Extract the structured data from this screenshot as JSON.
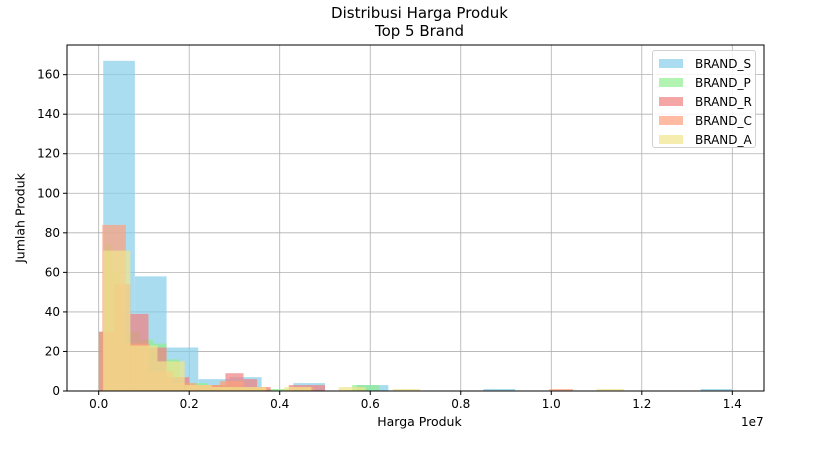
{
  "chart_data": {
    "type": "bar",
    "title": "Distribusi Harga Produk",
    "subtitle": "Top 5 Brand",
    "xlabel": "Harga Produk",
    "ylabel": "Jumlah Produk",
    "x_offset_label": "1e7",
    "xlim": [
      -0.07,
      1.47
    ],
    "ylim": [
      0,
      175
    ],
    "xticks": [
      0.0,
      0.2,
      0.4,
      0.6,
      0.8,
      1.0,
      1.2,
      1.4
    ],
    "xtick_labels": [
      "0.0",
      "0.2",
      "0.4",
      "0.6",
      "0.8",
      "1.0",
      "1.2",
      "1.4"
    ],
    "yticks": [
      0,
      20,
      40,
      60,
      80,
      100,
      120,
      140,
      160
    ],
    "ytick_labels": [
      "0",
      "20",
      "40",
      "60",
      "80",
      "100",
      "120",
      "140",
      "160"
    ],
    "grid": true,
    "legend_position": "top-right",
    "series": [
      {
        "name": "BRAND_S",
        "color": "#87ceeb",
        "bins": [
          [
            0.01,
            0.08,
            167
          ],
          [
            0.08,
            0.15,
            58
          ],
          [
            0.15,
            0.22,
            22
          ],
          [
            0.22,
            0.29,
            6
          ],
          [
            0.29,
            0.36,
            7
          ],
          [
            0.43,
            0.5,
            4
          ],
          [
            0.57,
            0.64,
            3
          ],
          [
            0.85,
            0.92,
            1
          ],
          [
            1.33,
            1.4,
            1
          ]
        ]
      },
      {
        "name": "BRAND_P",
        "color": "#90ee90",
        "bins": [
          [
            0.0,
            0.015,
            30
          ],
          [
            0.015,
            0.03,
            74
          ],
          [
            0.03,
            0.045,
            60
          ],
          [
            0.045,
            0.06,
            40
          ],
          [
            0.06,
            0.09,
            30
          ],
          [
            0.09,
            0.12,
            26
          ],
          [
            0.12,
            0.15,
            24
          ],
          [
            0.15,
            0.18,
            16
          ],
          [
            0.18,
            0.24,
            4
          ],
          [
            0.24,
            0.3,
            3
          ],
          [
            0.3,
            0.36,
            2
          ],
          [
            0.36,
            0.42,
            1
          ],
          [
            0.56,
            0.62,
            3
          ]
        ]
      },
      {
        "name": "BRAND_R",
        "color": "#f08080",
        "bins": [
          [
            0.0,
            0.035,
            30
          ],
          [
            0.035,
            0.07,
            54
          ],
          [
            0.07,
            0.11,
            39
          ],
          [
            0.11,
            0.15,
            22
          ],
          [
            0.15,
            0.2,
            7
          ],
          [
            0.2,
            0.28,
            3
          ],
          [
            0.28,
            0.32,
            9
          ],
          [
            0.32,
            0.35,
            6
          ],
          [
            0.35,
            0.38,
            2
          ],
          [
            0.42,
            0.5,
            3
          ]
        ]
      },
      {
        "name": "BRAND_C",
        "color": "#ffa07a",
        "bins": [
          [
            0.008,
            0.06,
            84
          ],
          [
            0.06,
            0.112,
            24
          ],
          [
            0.112,
            0.164,
            10
          ],
          [
            0.164,
            0.216,
            4
          ],
          [
            0.216,
            0.268,
            3
          ],
          [
            0.268,
            0.32,
            5
          ],
          [
            0.32,
            0.372,
            2
          ],
          [
            0.424,
            0.476,
            2
          ],
          [
            0.996,
            1.048,
            1
          ]
        ]
      },
      {
        "name": "BRAND_A",
        "color": "#f0e68c",
        "bins": [
          [
            0.01,
            0.07,
            71
          ],
          [
            0.07,
            0.13,
            23
          ],
          [
            0.13,
            0.19,
            15
          ],
          [
            0.19,
            0.25,
            3
          ],
          [
            0.25,
            0.31,
            2
          ],
          [
            0.31,
            0.37,
            2
          ],
          [
            0.41,
            0.47,
            2
          ],
          [
            0.53,
            0.59,
            2
          ],
          [
            0.65,
            0.71,
            1
          ],
          [
            1.1,
            1.16,
            1
          ]
        ]
      }
    ]
  }
}
